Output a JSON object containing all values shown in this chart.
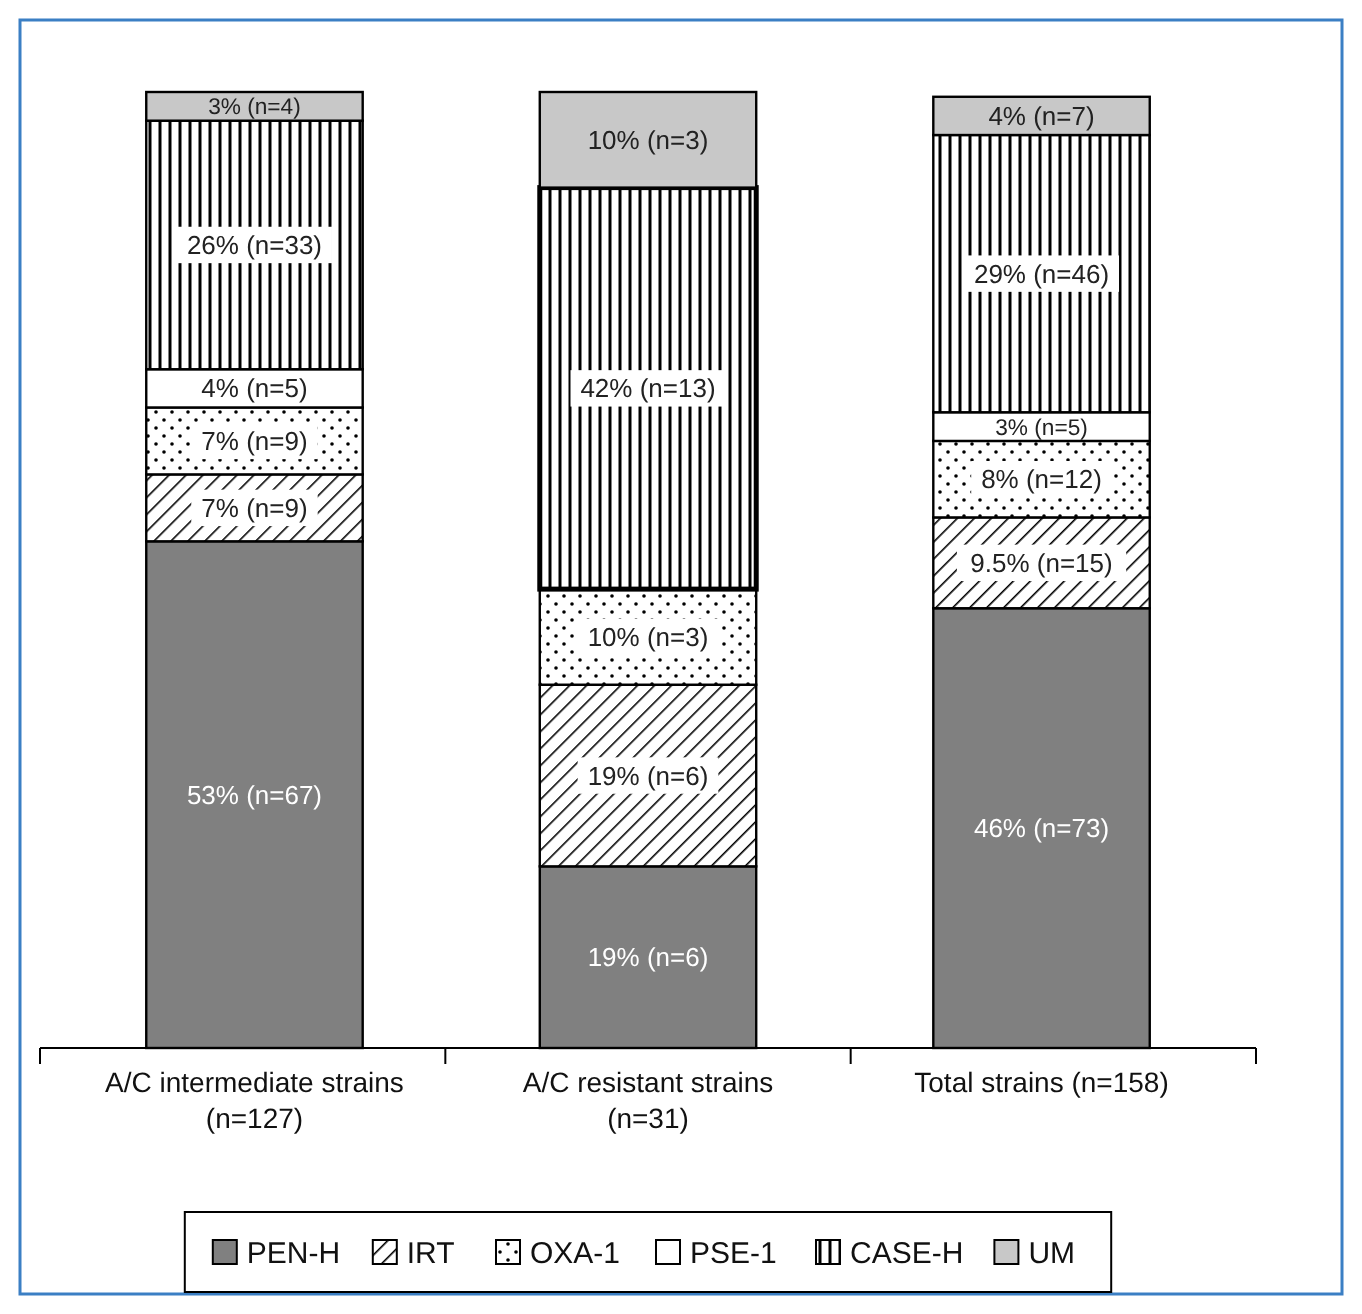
{
  "chart_data": {
    "type": "bar",
    "stacked": true,
    "legend": "bottom",
    "categories": [
      "A/C intermediate strains (n=127)",
      "A/C resistant strains (n=31)",
      "Total strains (n=158)"
    ],
    "series": [
      {
        "name": "PEN-H",
        "color": "#808080",
        "values": [
          53,
          19,
          46
        ],
        "value_labels": [
          "53% (n=67)",
          "19% (n=6)",
          "46% (n=73)"
        ]
      },
      {
        "name": "IRT",
        "color": "#000000",
        "values": [
          7,
          19,
          9.5
        ],
        "value_labels": [
          "7% (n=9)",
          "19% (n=6)",
          "9.5% (n=15)"
        ]
      },
      {
        "name": "OXA-1",
        "color": "#000000",
        "values": [
          7,
          10,
          8
        ],
        "value_labels": [
          "7% (n=9)",
          "10% (n=3)",
          "8% (n=12)"
        ]
      },
      {
        "name": "PSE-1",
        "color": "#ffffff",
        "values": [
          4,
          0,
          3
        ],
        "value_labels": [
          "4% (n=5)",
          null,
          "3% (n=5)"
        ]
      },
      {
        "name": "CASE-H",
        "color": "#000000",
        "values": [
          26,
          42,
          29
        ],
        "value_labels": [
          "26% (n=33)",
          "42% (n=13)",
          "29% (n=46)"
        ]
      },
      {
        "name": "UM",
        "color": "#c8c8c8",
        "values": [
          3,
          10,
          4
        ],
        "value_labels": [
          "3% (n=4)",
          "10% (n=3)",
          "4% (n=7)"
        ]
      }
    ]
  }
}
